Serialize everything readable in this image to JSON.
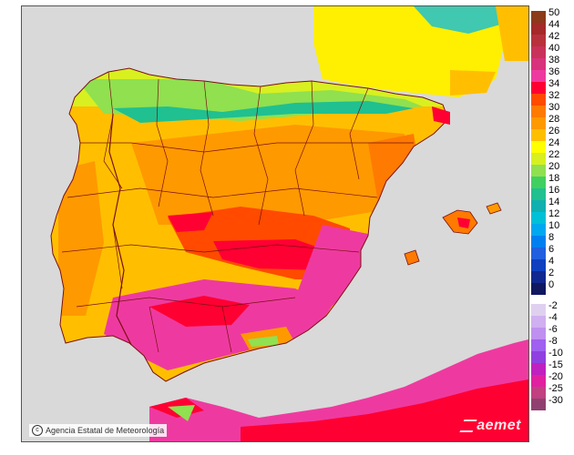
{
  "map": {
    "credit": "Agencia Estatal de Meteorología",
    "credit_icon": "copyright-icon",
    "logo": "aemet",
    "colors": {
      "sea": "#d9d9d9",
      "border": "#7a1010",
      "land_base": "#ffbf00"
    }
  },
  "legend": {
    "positive": [
      {
        "label": "50",
        "color": "#8b3a1a"
      },
      {
        "label": "44",
        "color": "#a52a2a"
      },
      {
        "label": "42",
        "color": "#b8323c"
      },
      {
        "label": "40",
        "color": "#c8325a"
      },
      {
        "label": "38",
        "color": "#d8327c"
      },
      {
        "label": "36",
        "color": "#ee3aa0"
      },
      {
        "label": "34",
        "color": "#ff0033"
      },
      {
        "label": "32",
        "color": "#ff4a00"
      },
      {
        "label": "30",
        "color": "#ff7a00"
      },
      {
        "label": "28",
        "color": "#ff9900"
      },
      {
        "label": "26",
        "color": "#ffbf00"
      },
      {
        "label": "24",
        "color": "#ffff00"
      },
      {
        "label": "22",
        "color": "#d8f020"
      },
      {
        "label": "20",
        "color": "#90e050"
      },
      {
        "label": "18",
        "color": "#40d060"
      },
      {
        "label": "16",
        "color": "#20c090"
      },
      {
        "label": "14",
        "color": "#10b0b0"
      },
      {
        "label": "12",
        "color": "#00c0d8"
      },
      {
        "label": "10",
        "color": "#00a8f0"
      },
      {
        "label": "8",
        "color": "#0080f0"
      },
      {
        "label": "6",
        "color": "#2060e0"
      },
      {
        "label": "4",
        "color": "#1040c0"
      },
      {
        "label": "2",
        "color": "#102890"
      },
      {
        "label": "0",
        "color": "#101860"
      }
    ],
    "negative": [
      {
        "label": "-2",
        "color": "#e0d0f0"
      },
      {
        "label": "-4",
        "color": "#d0b0f0"
      },
      {
        "label": "-6",
        "color": "#c090f0"
      },
      {
        "label": "-8",
        "color": "#a060f0"
      },
      {
        "label": "-10",
        "color": "#9040e0"
      },
      {
        "label": "-15",
        "color": "#c020c0"
      },
      {
        "label": "-20",
        "color": "#e020a0"
      },
      {
        "label": "-25",
        "color": "#c04080"
      },
      {
        "label": "-30",
        "color": "#904070"
      }
    ]
  }
}
